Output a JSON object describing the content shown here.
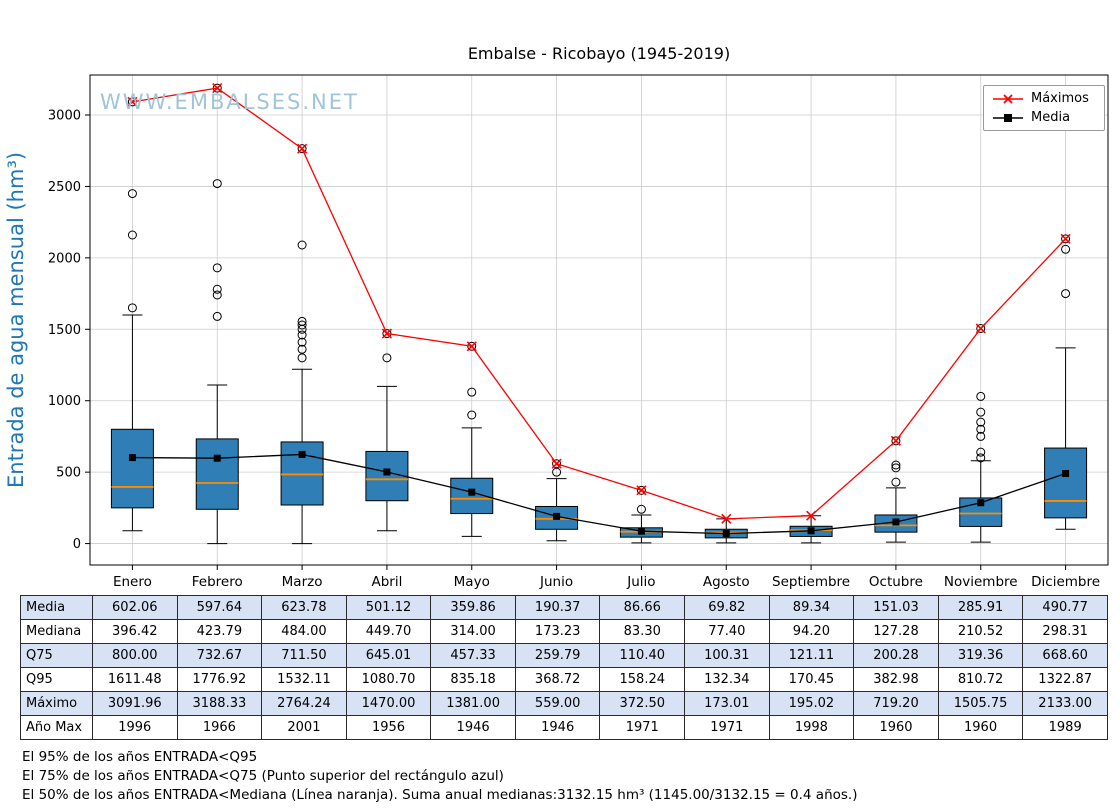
{
  "watermark": "WWW.EMBALSES.NET",
  "colors": {
    "box_fill": "#2f7fb6",
    "box_edge": "#000000",
    "median_line": "#ff8c00",
    "max_line": "#ff0000",
    "mean_line": "#000000",
    "grid": "#cccccc",
    "watermark": "#a0c4d8",
    "ylabel_color": "#1f77b4",
    "table_alt_row": "#d7e3f4"
  },
  "chart_data": {
    "type": "boxplot",
    "title": "Embalse - Ricobayo (1945-2019)",
    "xlabel": "",
    "ylabel": "Entrada de agua mensual (hm³)",
    "categories": [
      "Enero",
      "Febrero",
      "Marzo",
      "Abril",
      "Mayo",
      "Junio",
      "Julio",
      "Agosto",
      "Septiembre",
      "Octubre",
      "Noviembre",
      "Diciembre"
    ],
    "ylim": [
      -150,
      3280
    ],
    "yticks": [
      0,
      500,
      1000,
      1500,
      2000,
      2500,
      3000
    ],
    "grid": true,
    "legend_position": "upper right",
    "boxes": [
      {
        "whisker_low": 90,
        "q1": 250,
        "median": 396.42,
        "q3": 800.0,
        "whisker_high": 1600,
        "outliers": [
          1650,
          2160,
          2450,
          3091.96
        ]
      },
      {
        "whisker_low": 0,
        "q1": 240,
        "median": 423.79,
        "q3": 732.67,
        "whisker_high": 1110,
        "outliers": [
          1590,
          1740,
          1780,
          1930,
          2520,
          3188.33
        ]
      },
      {
        "whisker_low": 0,
        "q1": 270,
        "median": 484.0,
        "q3": 711.5,
        "whisker_high": 1220,
        "outliers": [
          1300,
          1360,
          1410,
          1460,
          1500,
          1530,
          1555,
          2090,
          2764.24
        ]
      },
      {
        "whisker_low": 90,
        "q1": 300,
        "median": 449.7,
        "q3": 645.01,
        "whisker_high": 1100,
        "outliers": [
          1300,
          1470.0
        ]
      },
      {
        "whisker_low": 50,
        "q1": 210,
        "median": 314.0,
        "q3": 457.33,
        "whisker_high": 810,
        "outliers": [
          900,
          1060,
          1381.0
        ]
      },
      {
        "whisker_low": 20,
        "q1": 100,
        "median": 173.23,
        "q3": 259.79,
        "whisker_high": 455,
        "outliers": [
          500,
          559.0
        ]
      },
      {
        "whisker_low": 5,
        "q1": 45,
        "median": 83.3,
        "q3": 110.4,
        "whisker_high": 200,
        "outliers": [
          240,
          372.5
        ]
      },
      {
        "whisker_low": 5,
        "q1": 40,
        "median": 77.4,
        "q3": 100.31,
        "whisker_high": 173.01,
        "outliers": []
      },
      {
        "whisker_low": 5,
        "q1": 50,
        "median": 94.2,
        "q3": 121.11,
        "whisker_high": 195.02,
        "outliers": []
      },
      {
        "whisker_low": 10,
        "q1": 80,
        "median": 127.28,
        "q3": 200.28,
        "whisker_high": 390,
        "outliers": [
          430,
          530,
          550,
          719.2
        ]
      },
      {
        "whisker_low": 10,
        "q1": 120,
        "median": 210.52,
        "q3": 319.36,
        "whisker_high": 580,
        "outliers": [
          600,
          640,
          750,
          800,
          850,
          920,
          1030,
          1505.75
        ]
      },
      {
        "whisker_low": 100,
        "q1": 180,
        "median": 298.31,
        "q3": 668.6,
        "whisker_high": 1370,
        "outliers": [
          1750,
          2060,
          2133.0
        ]
      }
    ],
    "series": [
      {
        "name": "Máximos",
        "marker": "x",
        "color": "#ff0000",
        "values": [
          3091.96,
          3188.33,
          2764.24,
          1470.0,
          1381.0,
          559.0,
          372.5,
          173.01,
          195.02,
          719.2,
          1505.75,
          2133.0
        ]
      },
      {
        "name": "Media",
        "marker": "square",
        "color": "#000000",
        "values": [
          602.06,
          597.64,
          623.78,
          501.12,
          359.86,
          190.37,
          86.66,
          69.82,
          89.34,
          151.03,
          285.91,
          490.77
        ]
      }
    ]
  },
  "table": {
    "rows": [
      {
        "label": "Media",
        "values": [
          "602.06",
          "597.64",
          "623.78",
          "501.12",
          "359.86",
          "190.37",
          "86.66",
          "69.82",
          "89.34",
          "151.03",
          "285.91",
          "490.77"
        ]
      },
      {
        "label": "Mediana",
        "values": [
          "396.42",
          "423.79",
          "484.00",
          "449.70",
          "314.00",
          "173.23",
          "83.30",
          "77.40",
          "94.20",
          "127.28",
          "210.52",
          "298.31"
        ]
      },
      {
        "label": "Q75",
        "values": [
          "800.00",
          "732.67",
          "711.50",
          "645.01",
          "457.33",
          "259.79",
          "110.40",
          "100.31",
          "121.11",
          "200.28",
          "319.36",
          "668.60"
        ]
      },
      {
        "label": "Q95",
        "values": [
          "1611.48",
          "1776.92",
          "1532.11",
          "1080.70",
          "835.18",
          "368.72",
          "158.24",
          "132.34",
          "170.45",
          "382.98",
          "810.72",
          "1322.87"
        ]
      },
      {
        "label": "Máximo",
        "values": [
          "3091.96",
          "3188.33",
          "2764.24",
          "1470.00",
          "1381.00",
          "559.00",
          "372.50",
          "173.01",
          "195.02",
          "719.20",
          "1505.75",
          "2133.00"
        ]
      },
      {
        "label": "Año Max",
        "values": [
          "1996",
          "1966",
          "2001",
          "1956",
          "1946",
          "1946",
          "1971",
          "1971",
          "1998",
          "1960",
          "1960",
          "1989"
        ]
      }
    ]
  },
  "footnotes": [
    "El 95% de los años ENTRADA<Q95",
    "El 75% de los años ENTRADA<Q75 (Punto superior del rectángulo azul)",
    "El 50% de los años ENTRADA<Mediana (Línea naranja). Suma anual medianas:3132.15 hm³ (1145.00/3132.15 = 0.4 años.)"
  ]
}
